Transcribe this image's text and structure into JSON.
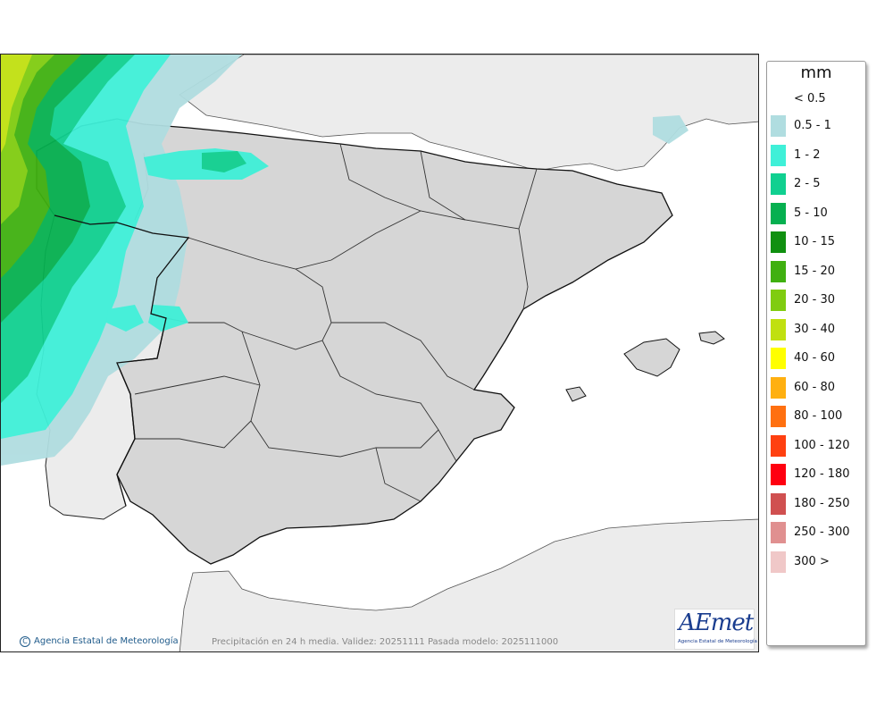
{
  "legend": {
    "unit": "mm",
    "below_label": "< 0.5",
    "items": [
      {
        "label": "0.5 - 1",
        "color": "#b0dde0"
      },
      {
        "label": "1 - 2",
        "color": "#3ff0d8"
      },
      {
        "label": "2 - 5",
        "color": "#10d090"
      },
      {
        "label": "5 - 10",
        "color": "#06b050"
      },
      {
        "label": "10 - 15",
        "color": "#109010"
      },
      {
        "label": "15 - 20",
        "color": "#40b010"
      },
      {
        "label": "20 - 30",
        "color": "#80cc10"
      },
      {
        "label": "30 - 40",
        "color": "#c0e010"
      },
      {
        "label": "40 - 60",
        "color": "#ffff00"
      },
      {
        "label": "60 - 80",
        "color": "#ffb010"
      },
      {
        "label": "80 - 100",
        "color": "#ff7010"
      },
      {
        "label": "100 - 120",
        "color": "#ff4010"
      },
      {
        "label": "120 - 180",
        "color": "#ff0010"
      },
      {
        "label": "180 - 250",
        "color": "#d05050"
      },
      {
        "label": "250 - 300",
        "color": "#e09090"
      },
      {
        "label": "300 >",
        "color": "#f0c8c8"
      }
    ]
  },
  "credit": {
    "icon": "copyright-icon",
    "text": "Agencia Estatal de Meteorología"
  },
  "footer": {
    "text": "Precipitación en 24 h media. Validez: 20251111 Pasada modelo: 2025111000"
  },
  "logo": {
    "text": "AEmet",
    "subtitle": "Agencia Estatal de Meteorología"
  },
  "colors": {
    "sea": "#ffffff",
    "land_other": "#ececec",
    "land_spain": "#d6d6d6",
    "border": "#111111"
  }
}
